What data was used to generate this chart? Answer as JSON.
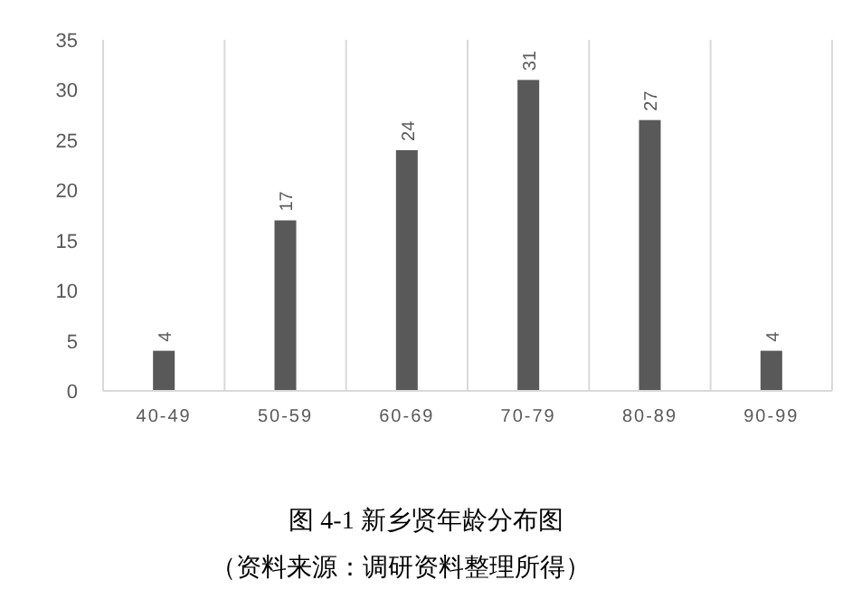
{
  "chart_data": {
    "type": "bar",
    "title": "图 4-1  新乡贤年龄分布图",
    "annotations": [
      "（资料来源：调研资料整理所得）"
    ],
    "categories": [
      "40-49",
      "50-59",
      "60-69",
      "70-79",
      "80-89",
      "90-99"
    ],
    "values": [
      4,
      17,
      24,
      31,
      27,
      4
    ],
    "color": "#595959",
    "ylim": [
      0,
      35
    ],
    "yticks": [
      0,
      5,
      10,
      15,
      20,
      25,
      30,
      35
    ],
    "grid": "x",
    "data_labels": true
  }
}
